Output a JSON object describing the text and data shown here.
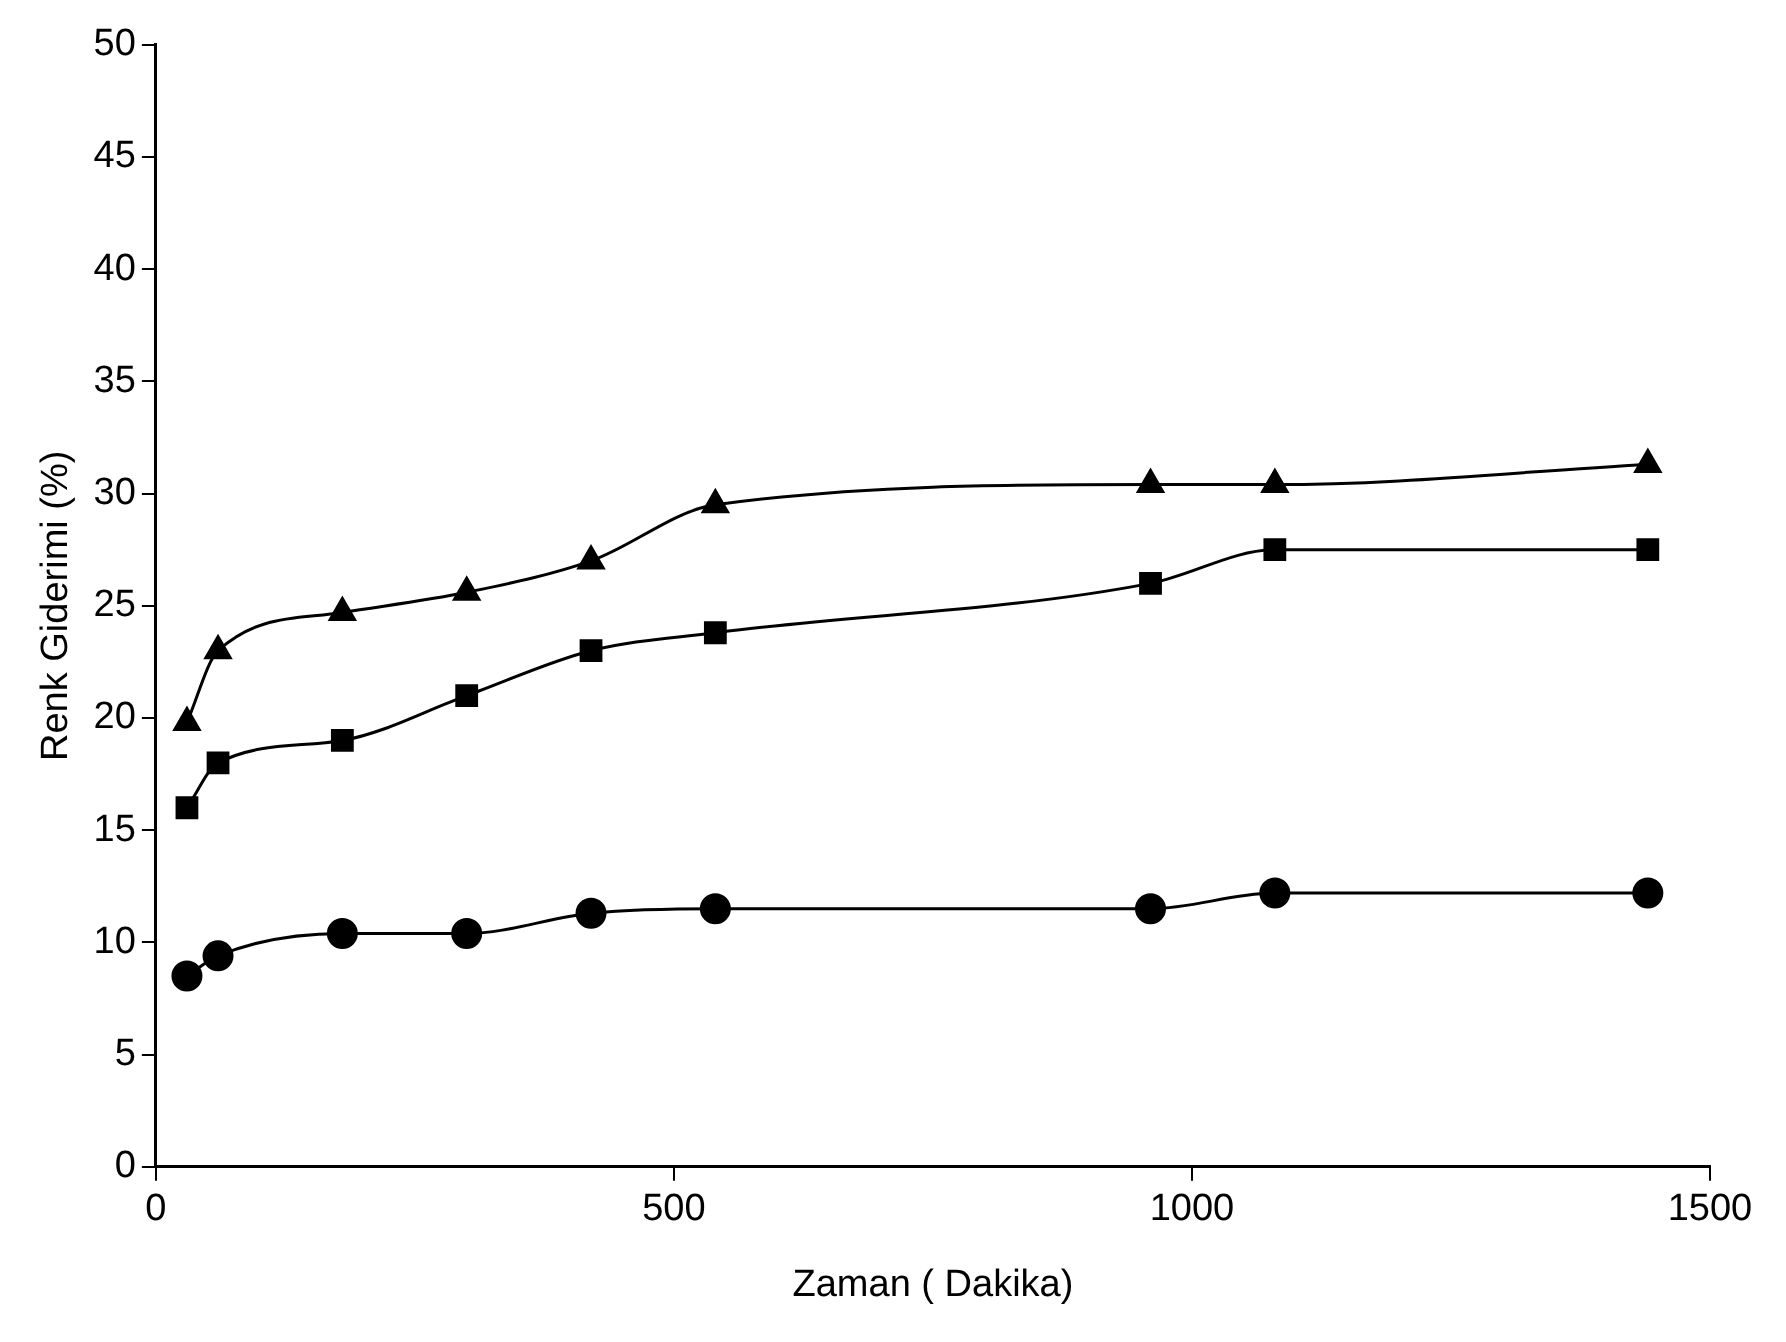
{
  "chart_data": {
    "type": "line",
    "xlabel": "Zaman ( Dakika)",
    "ylabel": "Renk Giderimi (%)",
    "x": [
      30,
      60,
      180,
      300,
      420,
      540,
      960,
      1080,
      1440
    ],
    "series": [
      {
        "color": "#000000",
        "marker": "triangle",
        "values": [
          19.8,
          23,
          24.7,
          25.6,
          27,
          29.5,
          30.4,
          30.4,
          31.3
        ]
      },
      {
        "color": "#000000",
        "marker": "square",
        "values": [
          16,
          18,
          19,
          21,
          23,
          23.8,
          26,
          27.5,
          27.5
        ]
      },
      {
        "color": "#000000",
        "marker": "circle",
        "values": [
          8.5,
          9.4,
          10.4,
          10.4,
          11.3,
          11.5,
          11.5,
          12.2,
          12.2
        ]
      }
    ],
    "xlim": [
      0,
      1500
    ],
    "xticks": [
      0,
      500,
      1000,
      1500
    ],
    "ylim": [
      0,
      50
    ],
    "yticks": [
      0,
      5,
      10,
      15,
      20,
      25,
      30,
      35,
      40,
      45,
      50
    ],
    "grid": false,
    "legend": false
  }
}
